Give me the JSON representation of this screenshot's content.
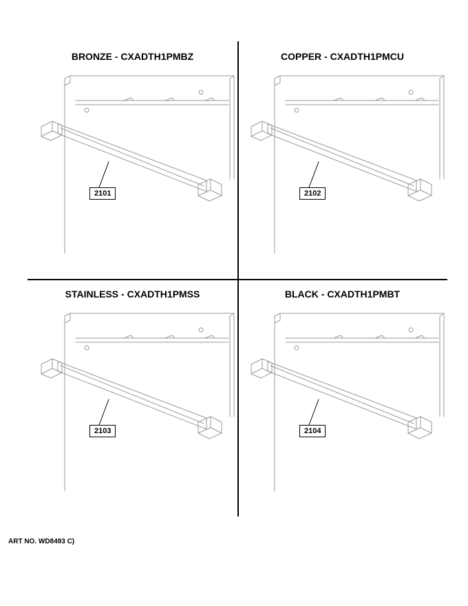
{
  "art_no": "ART NO. WD8493 C)",
  "line_color": "#9a9a9a",
  "line_width": 1,
  "callout_line_color": "#000000",
  "grid_color": "#000000",
  "background": "#ffffff",
  "title_fontsize": 14,
  "callout_fontsize": 11,
  "panels": [
    {
      "pos": "tl",
      "title": "BRONZE - CXADTH1PMBZ",
      "callout": "2101"
    },
    {
      "pos": "tr",
      "title": "COPPER - CXADTH1PMCU",
      "callout": "2102"
    },
    {
      "pos": "bl",
      "title": "STAINLESS - CXADTH1PMSS",
      "callout": "2103"
    },
    {
      "pos": "br",
      "title": "BLACK - CXADTH1PMBT",
      "callout": "2104"
    }
  ]
}
